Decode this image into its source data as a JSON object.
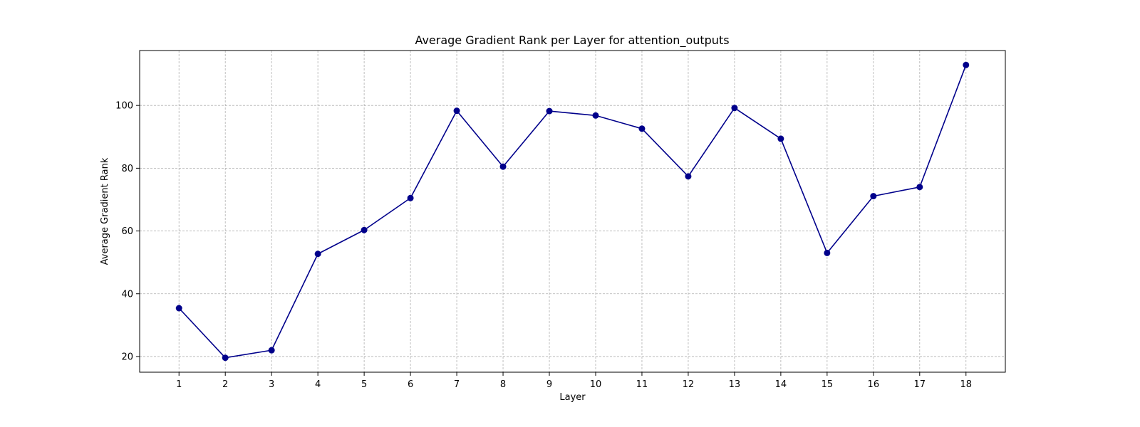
{
  "chart_data": {
    "type": "line",
    "title": "Average Gradient Rank per Layer for attention_outputs",
    "xlabel": "Layer",
    "ylabel": "Average Gradient Rank",
    "x": [
      1,
      2,
      3,
      4,
      5,
      6,
      7,
      8,
      9,
      10,
      11,
      12,
      13,
      14,
      15,
      16,
      17,
      18
    ],
    "series": [
      {
        "values": [
          35.4,
          19.6,
          22.0,
          52.7,
          60.3,
          70.5,
          98.3,
          80.5,
          98.2,
          96.8,
          92.6,
          77.4,
          99.2,
          89.4,
          53.0,
          71.1,
          74.0,
          112.9
        ],
        "color": "#00008b",
        "marker": "circle"
      }
    ],
    "xlim": [
      0.15,
      18.85
    ],
    "ylim": [
      15,
      117.5
    ],
    "xticks": [
      1,
      2,
      3,
      4,
      5,
      6,
      7,
      8,
      9,
      10,
      11,
      12,
      13,
      14,
      15,
      16,
      17,
      18
    ],
    "yticks": [
      20,
      40,
      60,
      80,
      100
    ],
    "grid": true,
    "legend": false
  }
}
